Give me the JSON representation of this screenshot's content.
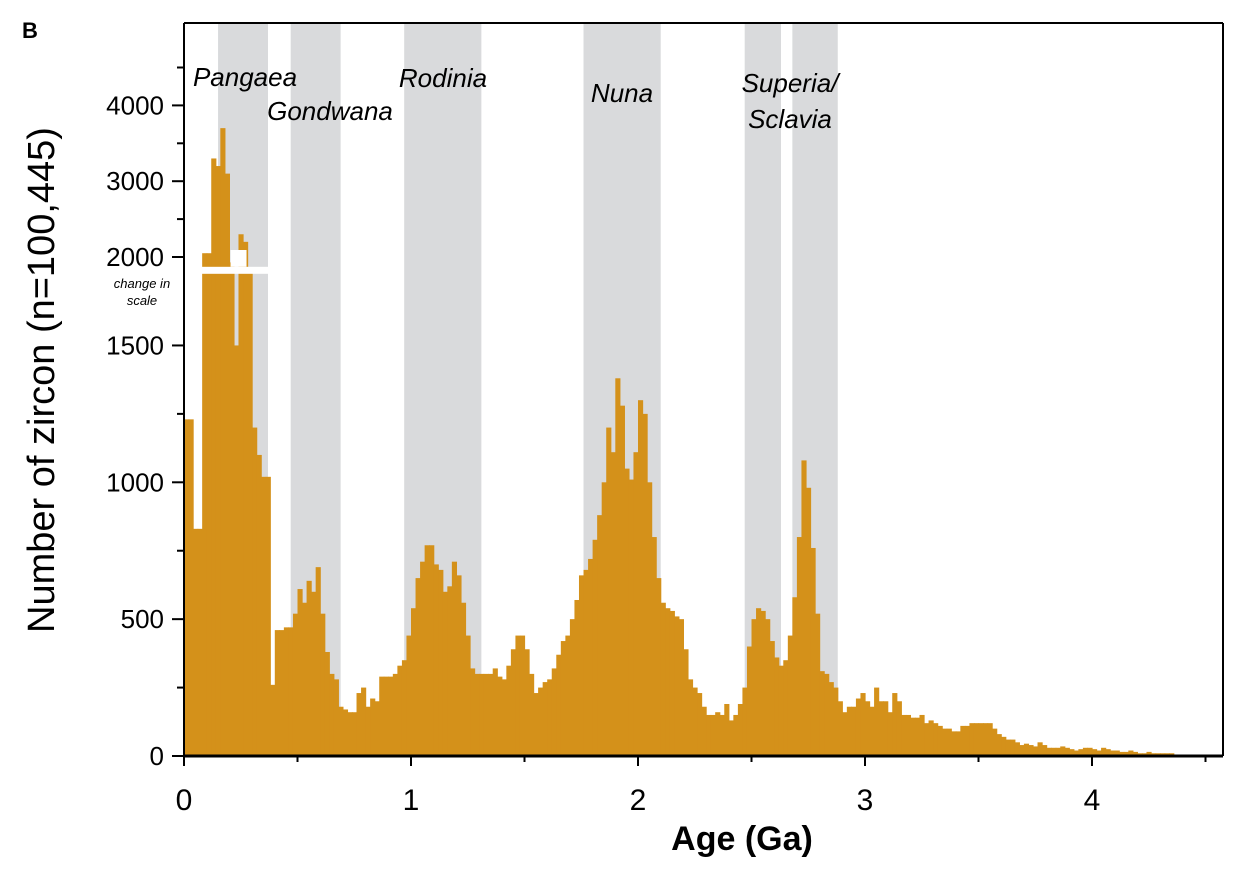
{
  "figure": {
    "panel_label": "B"
  },
  "colors": {
    "bars": "#d4911a",
    "bands": "#d9dadc",
    "axis": "#000000",
    "break": "#ffffff"
  },
  "chart_data": {
    "type": "bar",
    "title": "",
    "xlabel": "Age (Ga)",
    "ylabel": "Number of zircon (n=100,445)",
    "xlim": [
      0,
      4.56
    ],
    "x_ticks": [
      "0",
      "1",
      "2",
      "3",
      "4"
    ],
    "y_ticks_lower": [
      "0",
      "500",
      "1000",
      "1500"
    ],
    "y_ticks_upper": [
      "2000",
      "3000",
      "4000"
    ],
    "scale_note": {
      "line1": "change in",
      "line2": "scale"
    },
    "y_scale": {
      "lower_range": [
        0,
        1780
      ],
      "upper_range": [
        2000,
        4700
      ],
      "break_at": 1780
    },
    "grid": false,
    "legend": "none",
    "shaded_bands": [
      {
        "label": "Pangaea",
        "start": 0.15,
        "end": 0.37
      },
      {
        "label": "Gondwana",
        "start": 0.47,
        "end": 0.69
      },
      {
        "label": "Rodinia",
        "start": 0.97,
        "end": 1.31
      },
      {
        "label": "Nuna",
        "start": 1.76,
        "end": 2.1
      },
      {
        "label": "Superia/",
        "label2": "Sclavia",
        "start": 2.47,
        "end": 2.63
      },
      {
        "label": "",
        "start": 2.68,
        "end": 2.88
      }
    ],
    "bin_width": 0.02,
    "bin_start": 0,
    "values": [
      1230,
      1230,
      830,
      830,
      2050,
      2050,
      3300,
      3200,
      3700,
      3100,
      1900,
      1500,
      2300,
      2200,
      1780,
      1200,
      1100,
      1020,
      1020,
      260,
      460,
      460,
      470,
      470,
      520,
      610,
      560,
      640,
      600,
      690,
      520,
      380,
      300,
      280,
      180,
      170,
      160,
      160,
      230,
      250,
      180,
      210,
      200,
      290,
      290,
      290,
      300,
      330,
      350,
      440,
      540,
      650,
      710,
      770,
      770,
      700,
      680,
      600,
      620,
      710,
      660,
      560,
      440,
      320,
      300,
      300,
      300,
      300,
      320,
      290,
      280,
      330,
      390,
      440,
      440,
      390,
      300,
      230,
      250,
      270,
      280,
      320,
      370,
      420,
      440,
      500,
      570,
      660,
      680,
      720,
      790,
      880,
      1000,
      1200,
      1110,
      1380,
      1280,
      1050,
      1010,
      1110,
      1300,
      1250,
      1000,
      800,
      650,
      560,
      540,
      530,
      510,
      500,
      390,
      280,
      250,
      230,
      180,
      150,
      150,
      160,
      150,
      190,
      130,
      150,
      190,
      250,
      400,
      500,
      540,
      530,
      500,
      420,
      360,
      330,
      350,
      440,
      580,
      800,
      1080,
      980,
      760,
      520,
      310,
      300,
      270,
      250,
      200,
      160,
      180,
      180,
      210,
      230,
      200,
      180,
      250,
      200,
      200,
      160,
      230,
      200,
      150,
      150,
      140,
      140,
      150,
      120,
      130,
      120,
      110,
      100,
      100,
      90,
      90,
      110,
      110,
      120,
      120,
      120,
      120,
      120,
      100,
      80,
      70,
      60,
      60,
      50,
      40,
      45,
      40,
      35,
      50,
      40,
      30,
      30,
      30,
      35,
      30,
      25,
      20,
      25,
      30,
      30,
      25,
      20,
      30,
      25,
      20,
      20,
      15,
      15,
      20,
      15,
      10,
      10,
      15,
      10,
      10,
      10,
      10,
      10
    ]
  }
}
